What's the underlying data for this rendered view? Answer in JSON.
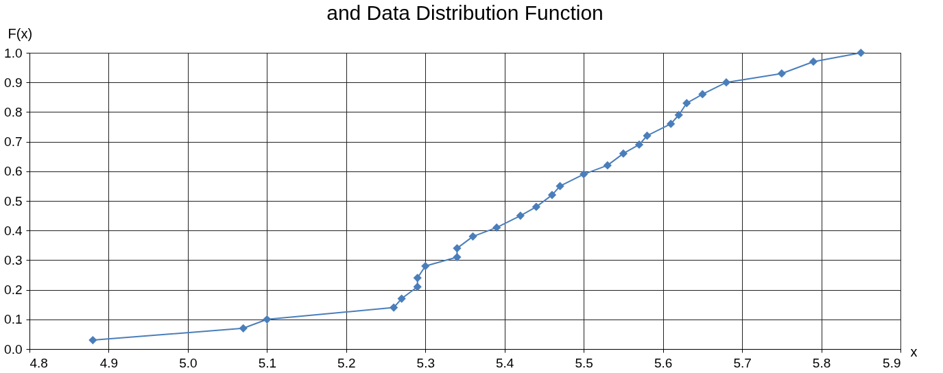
{
  "chart_data": {
    "type": "line",
    "title": "and Data Distribution Function",
    "xlabel": "x",
    "ylabel": "F(x)",
    "x": [
      4.88,
      5.07,
      5.1,
      5.26,
      5.27,
      5.29,
      5.29,
      5.3,
      5.34,
      5.34,
      5.36,
      5.39,
      5.42,
      5.44,
      5.46,
      5.47,
      5.5,
      5.53,
      5.55,
      5.57,
      5.58,
      5.61,
      5.62,
      5.63,
      5.65,
      5.68,
      5.75,
      5.79,
      5.85
    ],
    "series": [
      {
        "color": "#4a7ebb",
        "values": [
          0.03,
          0.07,
          0.1,
          0.14,
          0.17,
          0.21,
          0.24,
          0.28,
          0.31,
          0.34,
          0.38,
          0.41,
          0.45,
          0.48,
          0.52,
          0.55,
          0.59,
          0.62,
          0.66,
          0.69,
          0.72,
          0.76,
          0.79,
          0.83,
          0.86,
          0.9,
          0.93,
          0.97,
          1.0
        ]
      }
    ],
    "xlim": [
      4.8,
      5.9
    ],
    "ylim": [
      0,
      1
    ],
    "xticks": [
      4.8,
      4.9,
      {
        "value": 5,
        "label": "5.0"
      },
      5.1,
      5.2,
      5.3,
      5.4,
      5.5,
      5.6,
      5.7,
      5.8,
      5.9
    ],
    "yticks": [
      {
        "value": 0,
        "label": "0.0"
      },
      0.1,
      0.2,
      0.3,
      0.4,
      0.5,
      0.6,
      0.7,
      0.8,
      0.9,
      {
        "value": 1,
        "label": "1.0"
      }
    ],
    "grid": true,
    "marker": "diamond",
    "line_style": "solid"
  }
}
